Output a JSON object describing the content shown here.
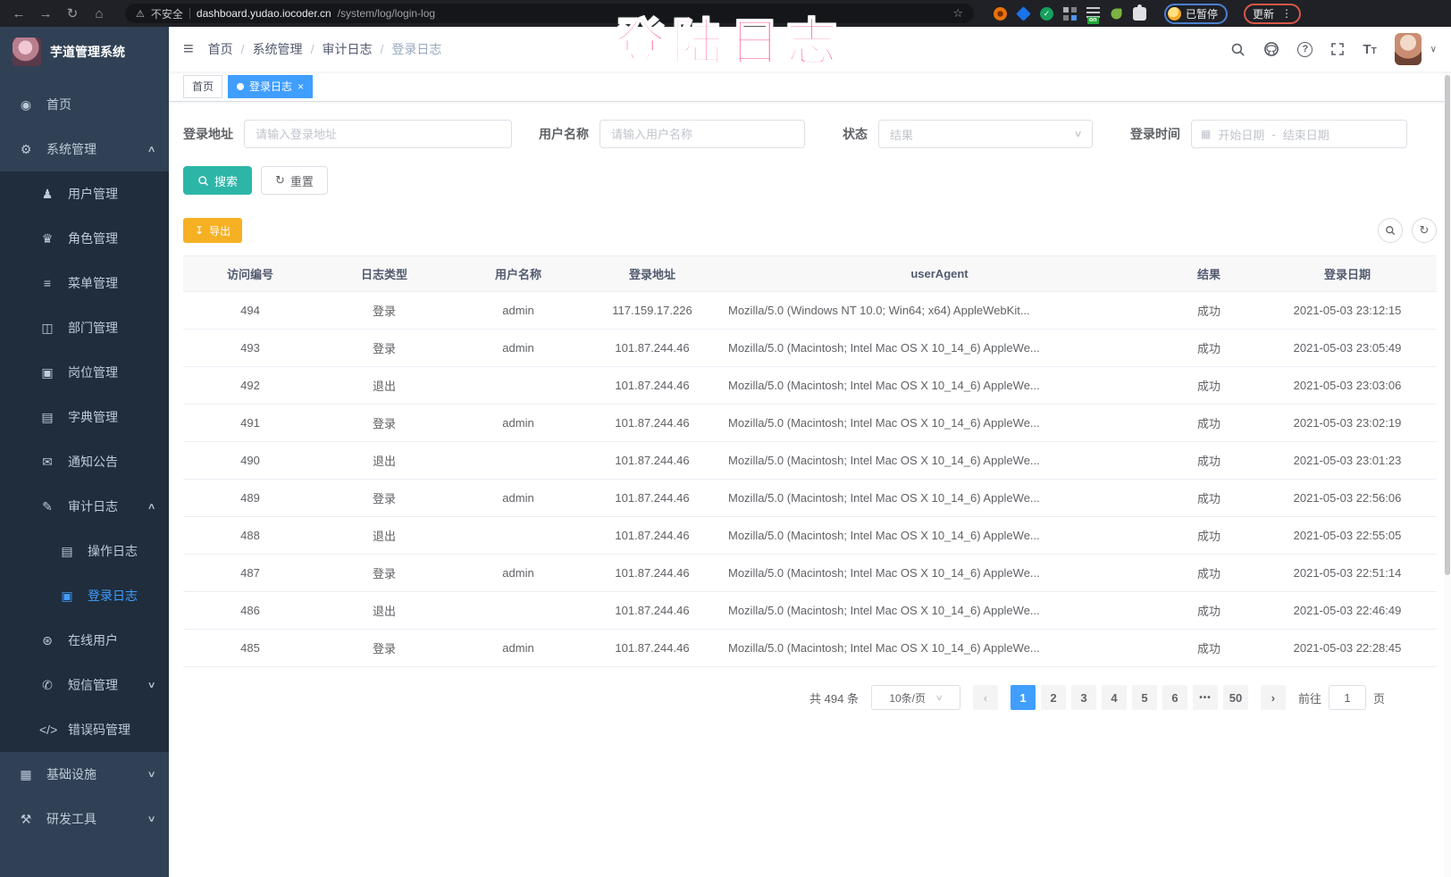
{
  "browser": {
    "security_warning": "不安全",
    "url_host": "dashboard.yudao.iocoder.cn",
    "url_path": "/system/log/login-log",
    "profile_badge": "已暂停",
    "update_button": "更新"
  },
  "overlay": {
    "text": "登陆日志"
  },
  "icons": {
    "back": "←",
    "forward": "→",
    "reload": "↻",
    "home": "⌂",
    "warning": "⚠",
    "star": "☆",
    "more": "⋮",
    "hamburger": "≡",
    "help": "?",
    "font_big": "T",
    "font_small": "T",
    "caret_down": "∨",
    "chevron_up": "∧",
    "calendar": "▦",
    "download": "↧",
    "refresh": "↻",
    "tab_close": "×",
    "check": "✓",
    "nav_caret": "▼"
  },
  "sidebar": {
    "app_title": "芋道管理系统",
    "items": [
      {
        "name": "home",
        "label": "首页",
        "icon": "◉",
        "depth": 0
      },
      {
        "name": "system-management",
        "label": "系统管理",
        "icon": "⚙",
        "depth": 0,
        "arrow": "up"
      },
      {
        "name": "user-management",
        "label": "用户管理",
        "icon": "♟",
        "depth": 1
      },
      {
        "name": "role-management",
        "label": "角色管理",
        "icon": "♛",
        "depth": 1
      },
      {
        "name": "menu-management",
        "label": "菜单管理",
        "icon": "≡",
        "depth": 1
      },
      {
        "name": "dept-management",
        "label": "部门管理",
        "icon": "◫",
        "depth": 1
      },
      {
        "name": "post-management",
        "label": "岗位管理",
        "icon": "▣",
        "depth": 1
      },
      {
        "name": "dict-management",
        "label": "字典管理",
        "icon": "▤",
        "depth": 1
      },
      {
        "name": "notice-announcement",
        "label": "通知公告",
        "icon": "✉",
        "depth": 1
      },
      {
        "name": "audit-log",
        "label": "审计日志",
        "icon": "✎",
        "depth": 1,
        "arrow": "up"
      },
      {
        "name": "operation-log",
        "label": "操作日志",
        "icon": "▤",
        "depth": 2
      },
      {
        "name": "login-log",
        "label": "登录日志",
        "icon": "▣",
        "depth": 2,
        "active": true
      },
      {
        "name": "online-users",
        "label": "在线用户",
        "icon": "⊛",
        "depth": 1
      },
      {
        "name": "sms-management",
        "label": "短信管理",
        "icon": "✆",
        "depth": 1,
        "arrow": "down"
      },
      {
        "name": "error-code-management",
        "label": "错误码管理",
        "icon": "</>",
        "depth": 1
      },
      {
        "name": "infrastructure",
        "label": "基础设施",
        "icon": "▦",
        "depth": 0,
        "arrow": "down"
      },
      {
        "name": "dev-tools",
        "label": "研发工具",
        "icon": "⚒",
        "depth": 0,
        "arrow": "down"
      }
    ]
  },
  "breadcrumb": {
    "items": [
      "首页",
      "系统管理",
      "审计日志",
      "登录日志"
    ]
  },
  "tabs": [
    {
      "label": "首页",
      "active": false
    },
    {
      "label": "登录日志",
      "active": true
    }
  ],
  "filters": {
    "login_address_label": "登录地址",
    "login_address_placeholder": "请输入登录地址",
    "username_label": "用户名称",
    "username_placeholder": "请输入用户名称",
    "status_label": "状态",
    "status_placeholder": "结果",
    "login_time_label": "登录时间",
    "date_start_placeholder": "开始日期",
    "date_separator": "-",
    "date_end_placeholder": "结束日期",
    "search_button": "搜索",
    "reset_button": "重置",
    "export_button": "导出"
  },
  "table": {
    "headers": [
      "访问编号",
      "日志类型",
      "用户名称",
      "登录地址",
      "userAgent",
      "结果",
      "登录日期"
    ],
    "rows": [
      {
        "id": "494",
        "type": "登录",
        "user": "admin",
        "ip": "117.159.17.226",
        "user_agent": "Mozilla/5.0 (Windows NT 10.0; Win64; x64) AppleWebKit...",
        "result": "成功",
        "date": "2021-05-03 23:12:15"
      },
      {
        "id": "493",
        "type": "登录",
        "user": "admin",
        "ip": "101.87.244.46",
        "user_agent": "Mozilla/5.0 (Macintosh; Intel Mac OS X 10_14_6) AppleWe...",
        "result": "成功",
        "date": "2021-05-03 23:05:49"
      },
      {
        "id": "492",
        "type": "退出",
        "user": "",
        "ip": "101.87.244.46",
        "user_agent": "Mozilla/5.0 (Macintosh; Intel Mac OS X 10_14_6) AppleWe...",
        "result": "成功",
        "date": "2021-05-03 23:03:06"
      },
      {
        "id": "491",
        "type": "登录",
        "user": "admin",
        "ip": "101.87.244.46",
        "user_agent": "Mozilla/5.0 (Macintosh; Intel Mac OS X 10_14_6) AppleWe...",
        "result": "成功",
        "date": "2021-05-03 23:02:19"
      },
      {
        "id": "490",
        "type": "退出",
        "user": "",
        "ip": "101.87.244.46",
        "user_agent": "Mozilla/5.0 (Macintosh; Intel Mac OS X 10_14_6) AppleWe...",
        "result": "成功",
        "date": "2021-05-03 23:01:23"
      },
      {
        "id": "489",
        "type": "登录",
        "user": "admin",
        "ip": "101.87.244.46",
        "user_agent": "Mozilla/5.0 (Macintosh; Intel Mac OS X 10_14_6) AppleWe...",
        "result": "成功",
        "date": "2021-05-03 22:56:06"
      },
      {
        "id": "488",
        "type": "退出",
        "user": "",
        "ip": "101.87.244.46",
        "user_agent": "Mozilla/5.0 (Macintosh; Intel Mac OS X 10_14_6) AppleWe...",
        "result": "成功",
        "date": "2021-05-03 22:55:05"
      },
      {
        "id": "487",
        "type": "登录",
        "user": "admin",
        "ip": "101.87.244.46",
        "user_agent": "Mozilla/5.0 (Macintosh; Intel Mac OS X 10_14_6) AppleWe...",
        "result": "成功",
        "date": "2021-05-03 22:51:14"
      },
      {
        "id": "486",
        "type": "退出",
        "user": "",
        "ip": "101.87.244.46",
        "user_agent": "Mozilla/5.0 (Macintosh; Intel Mac OS X 10_14_6) AppleWe...",
        "result": "成功",
        "date": "2021-05-03 22:46:49"
      },
      {
        "id": "485",
        "type": "登录",
        "user": "admin",
        "ip": "101.87.244.46",
        "user_agent": "Mozilla/5.0 (Macintosh; Intel Mac OS X 10_14_6) AppleWe...",
        "result": "成功",
        "date": "2021-05-03 22:28:45"
      }
    ]
  },
  "pagination": {
    "total_text": "共 494 条",
    "page_size": "10条/页",
    "prev": "‹",
    "next": "›",
    "pages": [
      "1",
      "2",
      "3",
      "4",
      "5",
      "6",
      "•••",
      "50"
    ],
    "active_page": "1",
    "goto_label": "前往",
    "goto_value": "1",
    "goto_suffix": "页"
  },
  "colors": {
    "accent_blue": "#409eff",
    "search_button": "#2cb6a8",
    "export_button": "#f6b024",
    "sidebar_bg": "#304156",
    "submenu_bg": "#1f2d3d",
    "overlay_pink": "#fb3274",
    "browser_bar_bg": "#1f2126"
  }
}
